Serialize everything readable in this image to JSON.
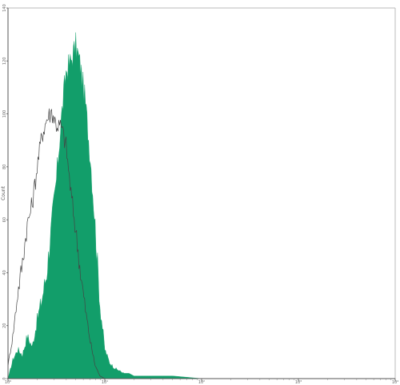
{
  "chart_data": {
    "type": "area",
    "title": "",
    "xlabel": "",
    "ylabel": "Count",
    "x_scale": "log",
    "xlim": [
      1,
      10000
    ],
    "ylim": [
      0,
      140
    ],
    "grid": false,
    "legend": "none",
    "x_tick_labels": [
      "10⁰",
      "10¹",
      "10²",
      "10³",
      "10⁴"
    ],
    "x_tick_values": [
      1,
      10,
      100,
      1000,
      10000
    ],
    "y_tick_labels": [
      "0",
      "20",
      "40",
      "60",
      "80",
      "100",
      "120",
      "140"
    ],
    "y_tick_values": [
      0,
      20,
      40,
      60,
      80,
      100,
      120,
      140
    ],
    "series": [
      {
        "style": "filled",
        "color": "#129e6a",
        "x": [
          1.0,
          1.12,
          1.26,
          1.41,
          1.58,
          1.78,
          2.0,
          2.24,
          2.51,
          2.82,
          3.16,
          3.55,
          3.98,
          4.47,
          5.01,
          5.62,
          6.31,
          7.08,
          7.94,
          8.91,
          10.0,
          11.2,
          12.6,
          14.1,
          15.8,
          17.8,
          20.0,
          25.1,
          31.6,
          50.1,
          100
        ],
        "y": [
          0,
          7,
          11,
          9,
          16,
          12,
          22,
          30,
          40,
          58,
          75,
          98,
          116,
          120,
          126,
          118,
          104,
          84,
          58,
          28,
          11,
          6,
          4,
          3,
          2,
          2,
          1,
          1,
          1,
          1,
          0
        ]
      },
      {
        "style": "outline",
        "color": "#444444",
        "x": [
          1.0,
          1.12,
          1.26,
          1.41,
          1.58,
          1.78,
          2.0,
          2.24,
          2.51,
          2.82,
          3.16,
          3.55,
          3.98,
          4.47,
          5.01,
          5.62,
          6.31,
          7.08,
          7.94,
          8.91,
          10.0
        ],
        "y": [
          5,
          16,
          32,
          44,
          58,
          66,
          80,
          92,
          98,
          101,
          96,
          95,
          88,
          70,
          56,
          40,
          26,
          14,
          5,
          1,
          0
        ]
      }
    ]
  }
}
